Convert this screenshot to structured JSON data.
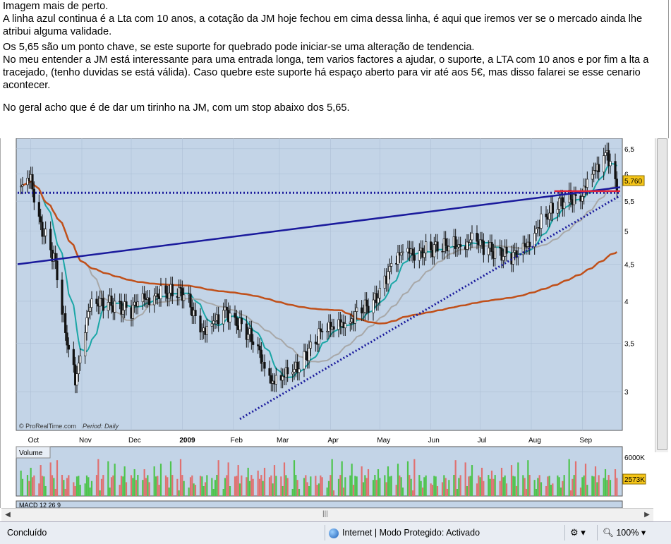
{
  "post": {
    "line1": "Imagem mais de perto.",
    "line2": "A linha azul continua é a Lta com 10 anos, a cotação da JM hoje fechou em cima dessa linha, é aqui que iremos ver se o mercado ainda lhe atribui alguma validade.",
    "line3": "Os 5,65 são um ponto chave, se este suporte for quebrado pode iniciar-se uma alteração de tendencia.",
    "line4": "No meu entender a JM está interessante para uma entrada longa, tem varios factores a ajudar, o suporte, a LTA com 10 anos e por fim a lta a tracejado, (tenho duvidas se está válida). Caso quebre este suporte há espaço aberto para vir até aos 5€, mas disso falarei se esse cenario acontecer.",
    "line5": "No geral acho que é de dar um tirinho na JM, com um stop abaixo dos 5,65."
  },
  "chart": {
    "watermark": "© ProRealTime.com",
    "period": "Period: Daily",
    "price_badge": "5,760",
    "volume_label": "Volume",
    "volume_badge": "2573K",
    "volume_tick": "6000K",
    "macd_label": "MACD 12 26 9",
    "y_ticks": [
      "6,5",
      "6",
      "5,5",
      "5",
      "4,5",
      "4",
      "3,5",
      "3"
    ],
    "x_ticks": [
      "Oct",
      "Nov",
      "Dec",
      "2009",
      "Feb",
      "Mar",
      "Apr",
      "May",
      "Jun",
      "Jul",
      "Aug",
      "Sep"
    ]
  },
  "chart_data": {
    "type": "candlestick",
    "title": "",
    "period": "Daily",
    "ylim": [
      2.7,
      6.6
    ],
    "y_scale": "log",
    "x_range": [
      "Oct 2008",
      "Sep 2009"
    ],
    "close_points": [
      {
        "x": "2008-09-25",
        "y": 5.7
      },
      {
        "x": "2008-10-01",
        "y": 5.9
      },
      {
        "x": "2008-10-07",
        "y": 5.1
      },
      {
        "x": "2008-10-15",
        "y": 4.6
      },
      {
        "x": "2008-10-22",
        "y": 3.6
      },
      {
        "x": "2008-10-28",
        "y": 3.1
      },
      {
        "x": "2008-11-05",
        "y": 3.9
      },
      {
        "x": "2008-11-15",
        "y": 4.0
      },
      {
        "x": "2008-12-01",
        "y": 3.9
      },
      {
        "x": "2008-12-15",
        "y": 4.1
      },
      {
        "x": "2009-01-02",
        "y": 4.1
      },
      {
        "x": "2009-01-15",
        "y": 3.6
      },
      {
        "x": "2009-01-27",
        "y": 3.9
      },
      {
        "x": "2009-02-10",
        "y": 3.6
      },
      {
        "x": "2009-02-25",
        "y": 3.1
      },
      {
        "x": "2009-03-10",
        "y": 3.2
      },
      {
        "x": "2009-03-25",
        "y": 3.6
      },
      {
        "x": "2009-04-15",
        "y": 3.8
      },
      {
        "x": "2009-04-28",
        "y": 4.0
      },
      {
        "x": "2009-05-10",
        "y": 4.6
      },
      {
        "x": "2009-05-25",
        "y": 4.7
      },
      {
        "x": "2009-06-10",
        "y": 4.75
      },
      {
        "x": "2009-06-25",
        "y": 4.85
      },
      {
        "x": "2009-07-10",
        "y": 4.7
      },
      {
        "x": "2009-07-25",
        "y": 4.6
      },
      {
        "x": "2009-08-05",
        "y": 5.1
      },
      {
        "x": "2009-08-20",
        "y": 5.5
      },
      {
        "x": "2009-09-01",
        "y": 5.65
      },
      {
        "x": "2009-09-10",
        "y": 6.1
      },
      {
        "x": "2009-09-16",
        "y": 6.45
      },
      {
        "x": "2009-09-22",
        "y": 5.76
      }
    ],
    "overlays": [
      {
        "name": "LTA 10 anos",
        "color": "#1a1a9c",
        "style": "solid"
      },
      {
        "name": "suporte 5,65",
        "color": "#1a1a9c",
        "style": "dotted"
      },
      {
        "name": "lta a tracejado",
        "color": "#1a1a9c",
        "style": "dotted"
      },
      {
        "name": "resistance",
        "color": "#e0243a",
        "style": "solid"
      }
    ],
    "moving_averages": [
      {
        "color": "#1aa6a6"
      },
      {
        "color": "#a8a8a8"
      },
      {
        "color": "#c0501a"
      }
    ]
  },
  "statusbar": {
    "status": "Concluído",
    "zone": "Internet | Modo Protegido: Activado",
    "zoom": "100%"
  },
  "colors": {
    "chart_bg": "#c3d4e7",
    "candle_up": "#111111",
    "volume_up": "#4ec44e",
    "volume_down": "#e07070",
    "badge": "#f5c518"
  }
}
